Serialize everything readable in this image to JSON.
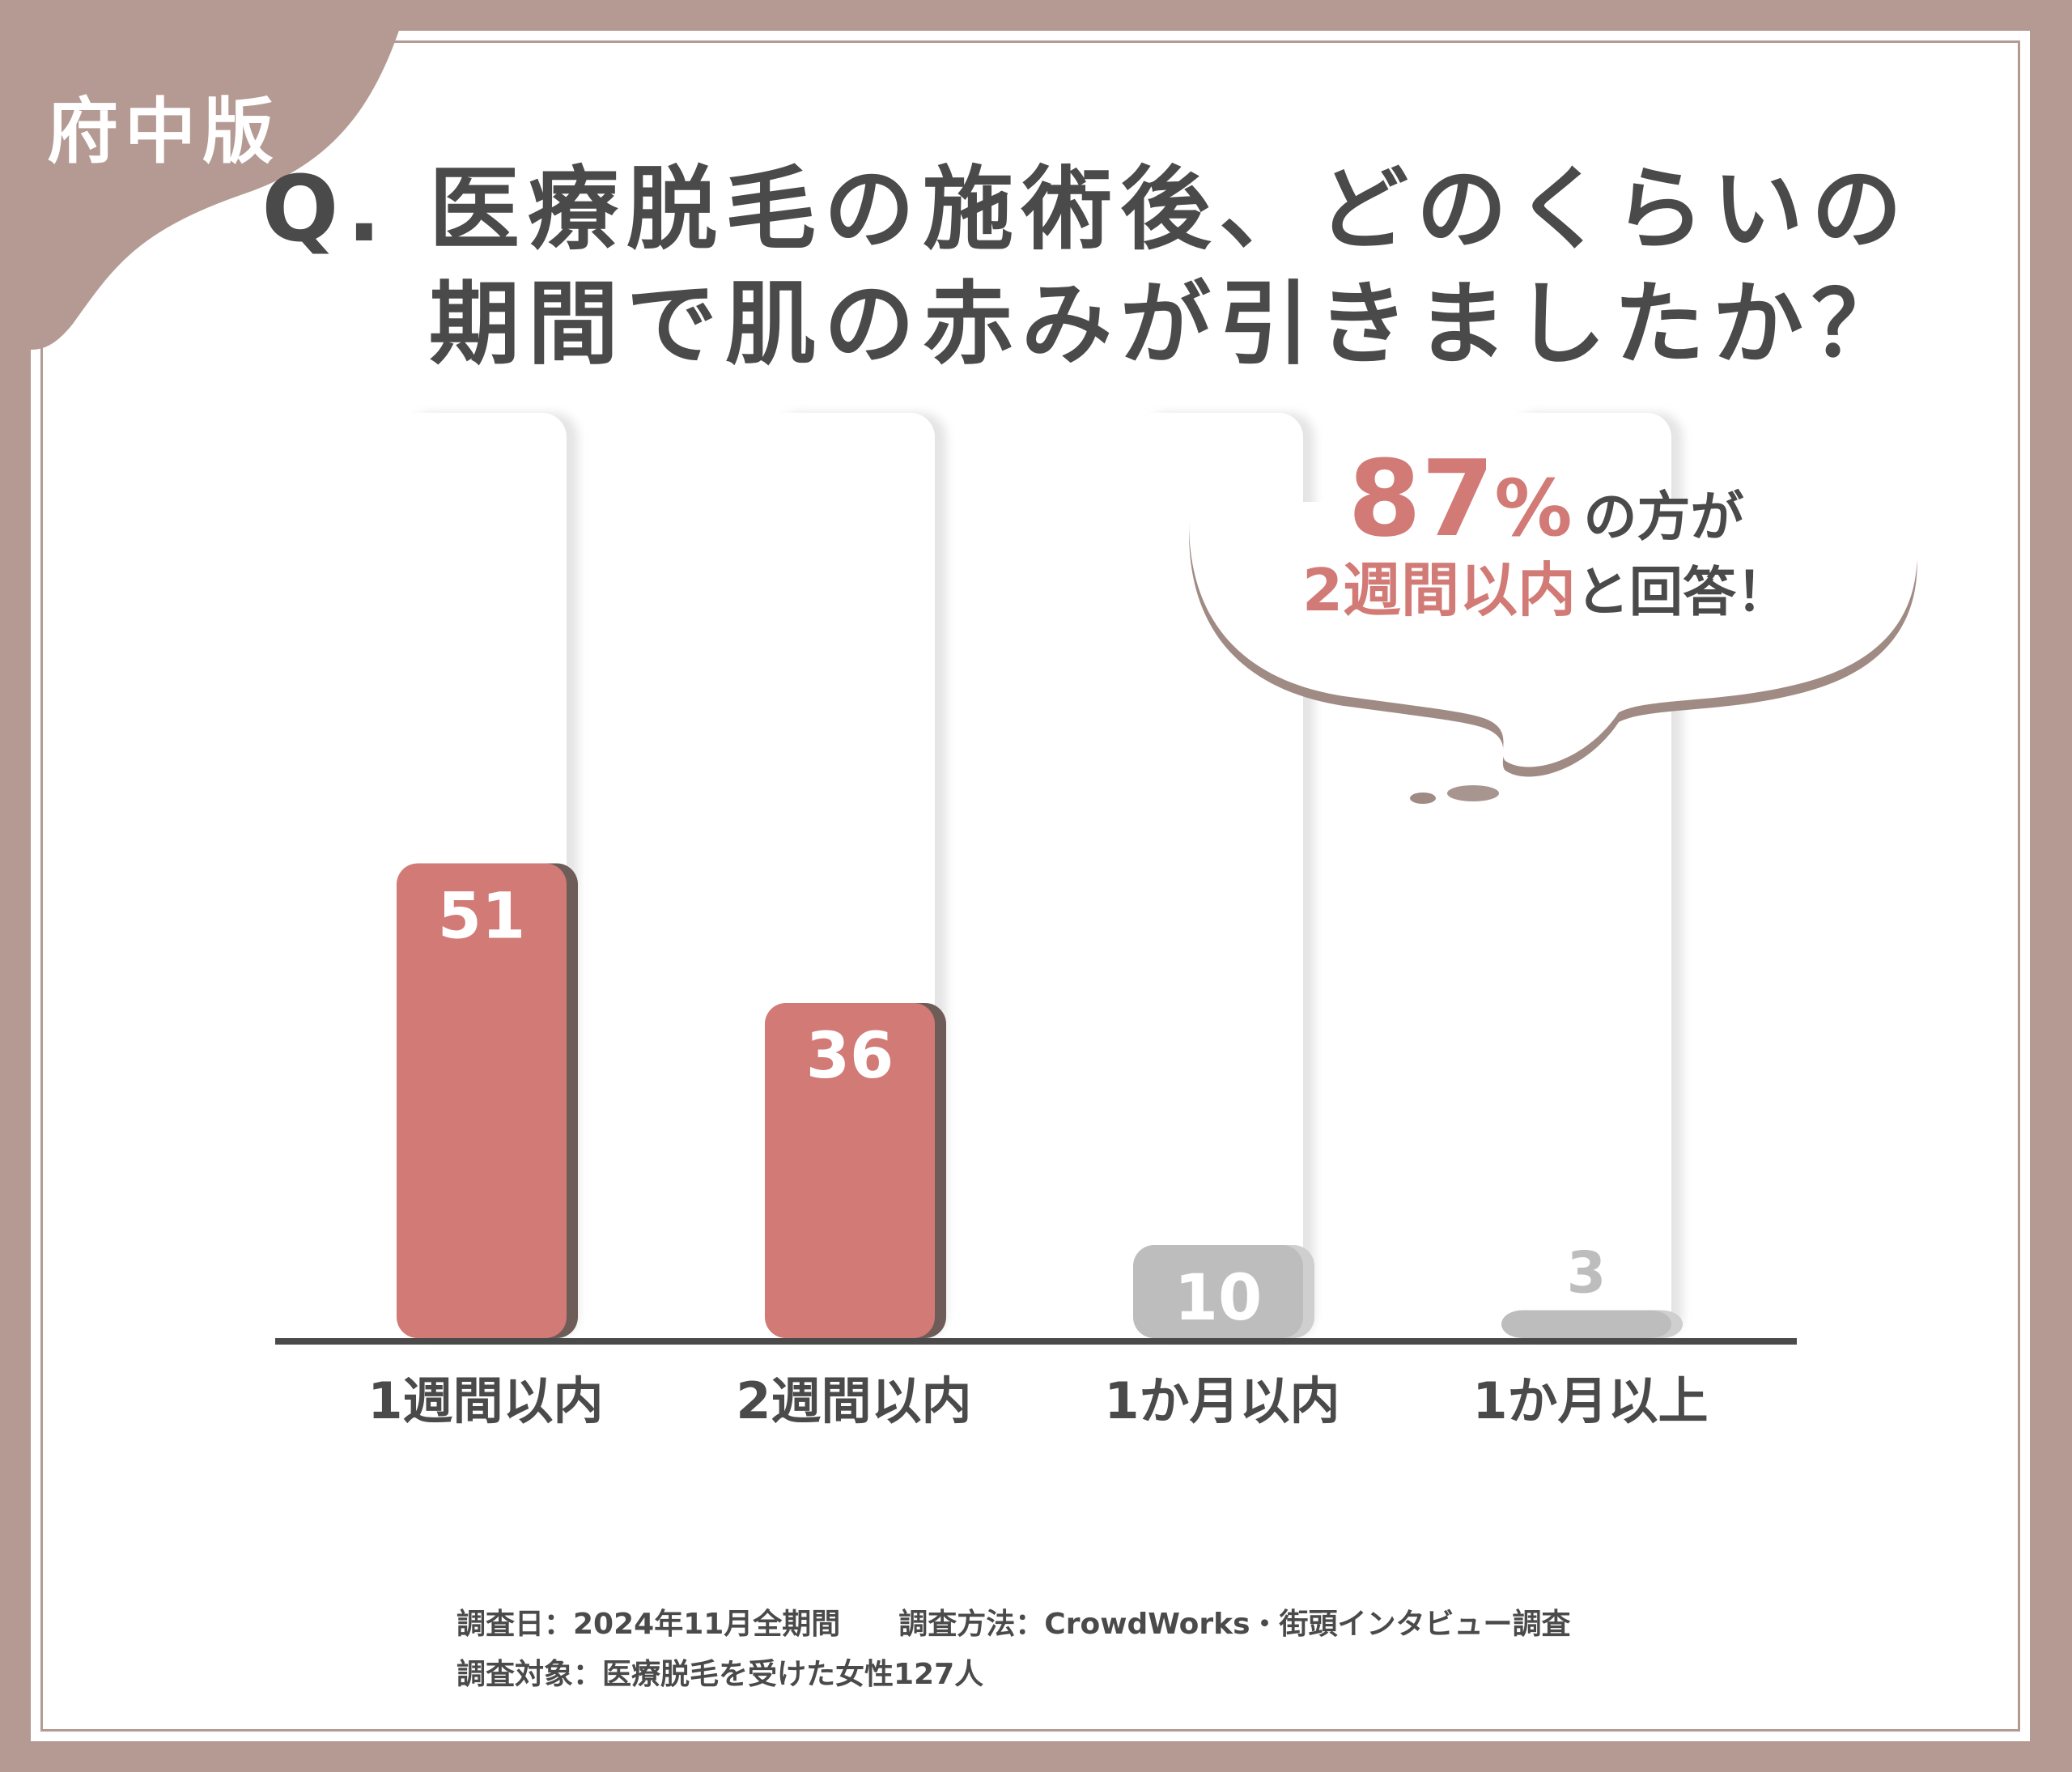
{
  "region_label": "府中版",
  "title": {
    "line1": "Q. 医療脱毛の施術後、どのくらいの",
    "line2": "期間で肌の赤みが引きましたか？"
  },
  "callout": {
    "percent": "87",
    "percent_unit": "%",
    "text1": "の方が",
    "highlight": "2週間以内",
    "text2": "と回答！"
  },
  "chart_data": {
    "type": "bar",
    "title": "Q. 医療脱毛の施術後、どのくらいの期間で肌の赤みが引きましたか？",
    "categories": [
      "1週間以内",
      "2週間以内",
      "1か月以内",
      "1か月以上"
    ],
    "values": [
      51,
      36,
      10,
      3
    ],
    "data_labels": [
      "51",
      "36",
      "10",
      "3"
    ],
    "xlabel": "",
    "ylabel": "",
    "ylim": [
      0,
      100
    ],
    "grid": false,
    "legend": "none",
    "highlight_categories": [
      0,
      1
    ]
  },
  "colors": {
    "highlight": "#d17a76",
    "muted": "#bdbdbd",
    "frame": "#b49a92",
    "text": "#4a4a4a"
  },
  "footnote": {
    "line1": "調査日：2024年11月全期間　　調査方法：CrowdWorks・街頭インタビュー調査",
    "line2": "調査対象：医療脱毛を受けた女性127人"
  }
}
